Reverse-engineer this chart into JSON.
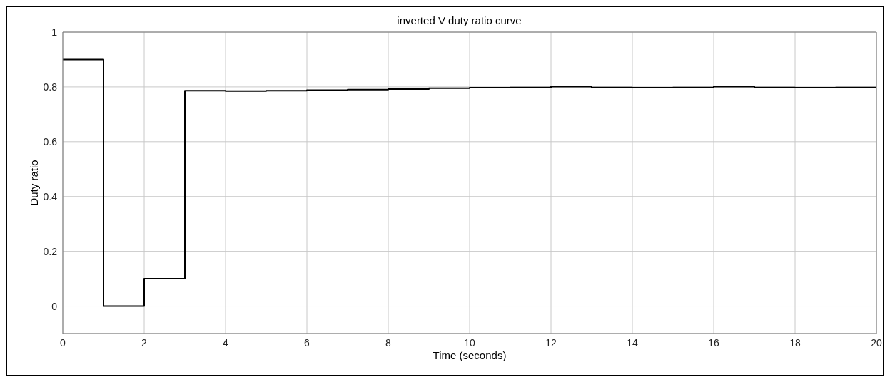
{
  "chart_data": {
    "type": "step",
    "title": "inverted V duty ratio curve",
    "xlabel": "Time (seconds)",
    "ylabel": "Duty ratio",
    "x": [
      0,
      1,
      2,
      3,
      4,
      5,
      6,
      7,
      8,
      9,
      10,
      11,
      12,
      13,
      14,
      15,
      16,
      17,
      18,
      19,
      20
    ],
    "series": [
      {
        "color": "#000000",
        "values": [
          0.9,
          0,
          0.1,
          0.786,
          0.785,
          0.786,
          0.788,
          0.79,
          0.792,
          0.795,
          0.797,
          0.798,
          0.801,
          0.798,
          0.797,
          0.798,
          0.801,
          0.798,
          0.797,
          0.798,
          0.798
        ]
      }
    ],
    "xlim": [
      0,
      20
    ],
    "xticks": [
      0,
      2,
      4,
      6,
      8,
      10,
      12,
      14,
      16,
      18,
      20
    ],
    "ylim": [
      -0.1,
      1
    ],
    "yticks": [
      0,
      0.2,
      0.4,
      0.6,
      0.8,
      1
    ],
    "grid": true
  }
}
